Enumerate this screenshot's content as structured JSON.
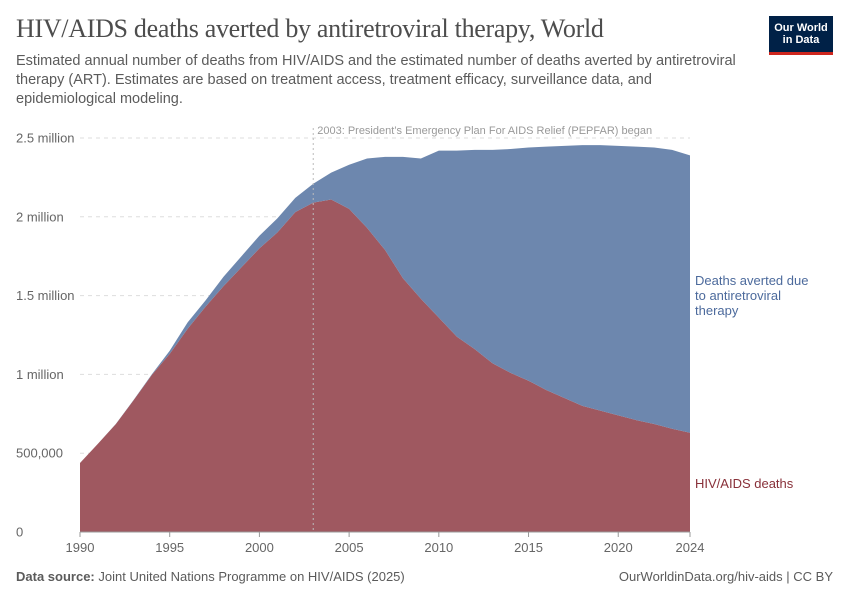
{
  "header": {
    "title": "HIV/AIDS deaths averted by antiretroviral therapy, World",
    "subtitle": "Estimated annual number of deaths from HIV/AIDS and the estimated number of deaths averted by antiretroviral therapy (ART). Estimates are based on treatment access, treatment efficacy, surveillance data, and epidemiological modeling.",
    "logo": "Our World in Data"
  },
  "footer": {
    "source_label": "Data source:",
    "source": "Joint United Nations Programme on HIV/AIDS (2025)",
    "url": "OurWorldinData.org/hiv-aids | CC BY"
  },
  "chart_data": {
    "type": "area",
    "stacked": true,
    "x": [
      1990,
      1991,
      1992,
      1993,
      1994,
      1995,
      1996,
      1997,
      1998,
      1999,
      2000,
      2001,
      2002,
      2003,
      2004,
      2005,
      2006,
      2007,
      2008,
      2009,
      2010,
      2011,
      2012,
      2013,
      2014,
      2015,
      2016,
      2017,
      2018,
      2019,
      2020,
      2021,
      2022,
      2023,
      2024
    ],
    "series": [
      {
        "name": "HIV/AIDS deaths",
        "color": "#9f5860",
        "label_color": "#883039",
        "values": [
          438000,
          560000,
          685000,
          838000,
          996000,
          1130000,
          1290000,
          1430000,
          1560000,
          1680000,
          1800000,
          1900000,
          2030000,
          2090000,
          2110000,
          2050000,
          1930000,
          1790000,
          1610000,
          1480000,
          1360000,
          1240000,
          1160000,
          1070000,
          1010000,
          960000,
          900000,
          850000,
          800000,
          770000,
          740000,
          710000,
          685000,
          655000,
          630000
        ]
      },
      {
        "name": "Deaths averted due to antiretroviral therapy",
        "color": "#6d87ae",
        "label_color": "#4c6a9c",
        "values": [
          0,
          0,
          1000,
          2000,
          4000,
          20000,
          40000,
          40000,
          60000,
          70000,
          80000,
          90000,
          90000,
          120000,
          170000,
          280000,
          440000,
          590000,
          770000,
          890000,
          1060000,
          1180000,
          1265000,
          1355000,
          1420000,
          1480000,
          1545000,
          1600000,
          1655000,
          1685000,
          1710000,
          1735000,
          1755000,
          1770000,
          1760000
        ]
      }
    ],
    "ylim": [
      0,
      2500000
    ],
    "y_ticks": [
      0,
      500000,
      1000000,
      1500000,
      2000000,
      2500000
    ],
    "y_tick_labels": [
      "0",
      "500,000",
      "1 million",
      "1.5 million",
      "2 million",
      "2.5 million"
    ],
    "x_ticks": [
      1990,
      1995,
      2000,
      2005,
      2010,
      2015,
      2020,
      2024
    ],
    "x_tick_labels": [
      "1990",
      "1995",
      "2000",
      "2005",
      "2010",
      "2015",
      "2020",
      "2024"
    ],
    "grid": "horizontal dashed",
    "annotation": {
      "x": 2003,
      "text": "2003: President’s Emergency Plan For AIDS Relief (PEPFAR) began"
    },
    "legend": "inline-right"
  }
}
